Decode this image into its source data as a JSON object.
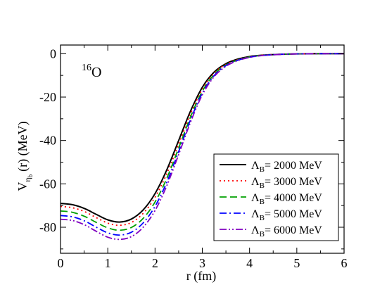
{
  "chart_data": {
    "type": "line",
    "annotation": {
      "sup": "16",
      "base": "O"
    },
    "xlabel": "r  (fm)",
    "ylabel": {
      "base": "V",
      "sub": "η",
      "subsub": "b",
      "rest": "(r)  (MeV)"
    },
    "xlim": [
      0,
      6
    ],
    "ylim": [
      -92,
      4
    ],
    "xticks": [
      "0",
      "1",
      "2",
      "3",
      "4",
      "5",
      "6"
    ],
    "yticks": [
      "0",
      "-20",
      "-40",
      "-60",
      "-80"
    ],
    "x": [
      0,
      0.25,
      0.5,
      0.75,
      1.0,
      1.25,
      1.5,
      1.75,
      2.0,
      2.25,
      2.5,
      2.75,
      3.0,
      3.25,
      3.5,
      3.75,
      4.0,
      4.25,
      4.5,
      4.75,
      5.0,
      5.5,
      6.0
    ],
    "series": [
      {
        "name": "2000 MeV",
        "color": "#000000",
        "dash": "solid",
        "values": [
          -69.0,
          -69.6,
          -71.3,
          -74.0,
          -76.6,
          -77.6,
          -76.2,
          -72.0,
          -64.5,
          -53.5,
          -40.0,
          -26.5,
          -15.5,
          -8.5,
          -4.6,
          -2.5,
          -1.3,
          -0.7,
          -0.4,
          -0.2,
          -0.1,
          0.0,
          0.0
        ]
      },
      {
        "name": "3000 MeV",
        "color": "#ff0000",
        "dash": "dotted",
        "values": [
          -70.4,
          -71.0,
          -72.7,
          -75.5,
          -78.1,
          -79.1,
          -77.8,
          -73.6,
          -66.2,
          -55.3,
          -41.7,
          -27.8,
          -16.4,
          -9.0,
          -4.9,
          -2.7,
          -1.4,
          -0.75,
          -0.4,
          -0.2,
          -0.1,
          0.0,
          0.0
        ]
      },
      {
        "name": "4000 MeV",
        "color": "#00a000",
        "dash": "dashed",
        "values": [
          -72.5,
          -73.1,
          -74.9,
          -77.7,
          -80.3,
          -81.4,
          -80.1,
          -75.9,
          -68.4,
          -57.4,
          -43.5,
          -29.2,
          -17.3,
          -9.6,
          -5.2,
          -2.9,
          -1.5,
          -0.8,
          -0.45,
          -0.2,
          -0.1,
          0.0,
          0.0
        ]
      },
      {
        "name": "5000 MeV",
        "color": "#0000ff",
        "dash": "dashdot",
        "values": [
          -74.6,
          -75.2,
          -77.0,
          -79.9,
          -82.6,
          -83.6,
          -82.3,
          -78.0,
          -70.4,
          -59.2,
          -45.1,
          -30.5,
          -18.2,
          -10.1,
          -5.5,
          -3.0,
          -1.6,
          -0.85,
          -0.45,
          -0.2,
          -0.1,
          0.0,
          0.0
        ]
      },
      {
        "name": "6000 MeV",
        "color": "#8000c0",
        "dash": "dashdotdot",
        "values": [
          -76.3,
          -76.9,
          -78.8,
          -81.8,
          -84.6,
          -85.6,
          -84.3,
          -80.0,
          -72.3,
          -60.8,
          -46.5,
          -31.6,
          -19.0,
          -10.6,
          -5.8,
          -3.2,
          -1.7,
          -0.9,
          -0.5,
          -0.25,
          -0.1,
          0.0,
          0.0
        ]
      }
    ],
    "legend": {
      "placement": "bottom-right",
      "symbol": "Λ",
      "symbol_sub": "B",
      "prefix": "= "
    }
  }
}
